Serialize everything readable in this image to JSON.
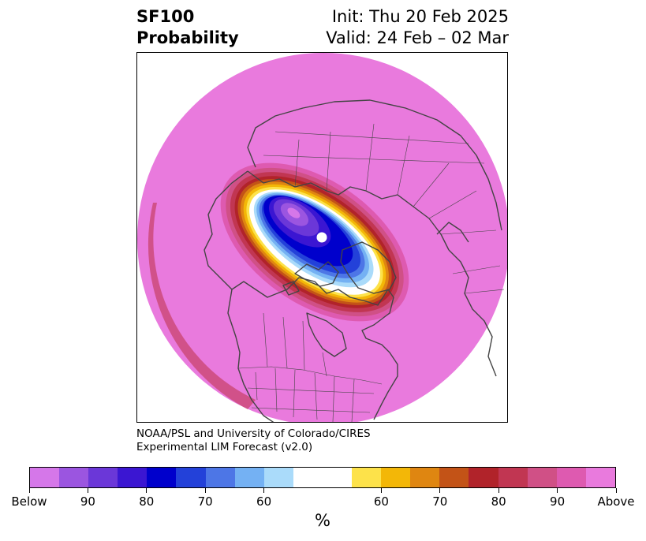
{
  "header": {
    "variable": "SF100",
    "subtitle": "Probability",
    "init": "Init: Thu 20 Feb 2025",
    "valid": "Valid: 24 Feb – 02 Mar"
  },
  "credit": {
    "line1": "NOAA/PSL and University of Colorado/CIRES",
    "line2": "Experimental LIM Forecast (v2.0)"
  },
  "colorbar": {
    "colors": [
      "#d577e9",
      "#9b55e0",
      "#6b37d8",
      "#3b16d2",
      "#0000cc",
      "#2341d9",
      "#4d76e6",
      "#74b1f3",
      "#aadbfa",
      "#ffffff",
      "#ffffff",
      "#fde24a",
      "#f3b707",
      "#df8611",
      "#c35317",
      "#b1232a",
      "#c13652",
      "#d05086",
      "#de5ab0",
      "#e97add"
    ],
    "tick_labels": [
      "Below",
      "90",
      "80",
      "70",
      "60",
      "60",
      "70",
      "80",
      "90",
      "Above"
    ],
    "unit": "%"
  },
  "map": {
    "projection": "north-polar-stereographic",
    "background_category": "Above",
    "anomaly_center": "Arctic Ocean / Canadian Arctic",
    "colors": {
      "above_fill": "#e97add",
      "coastline": "#444444"
    }
  }
}
